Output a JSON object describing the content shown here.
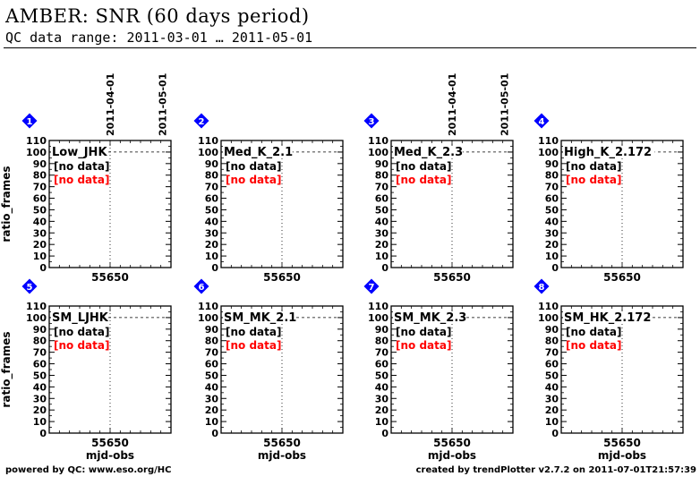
{
  "header": {
    "title": "AMBER: SNR (60 days period)",
    "subtitle": "QC data range: 2011-03-01 … 2011-05-01"
  },
  "footer": {
    "left": "powered by QC: www.eso.org/HC",
    "right": "created by trendPlotter v2.7.2 on 2011-07-01T21:57:39"
  },
  "colors": {
    "no_data_red": "#ff0000",
    "marker_blue": "#0000ff"
  },
  "chart_data": [
    {
      "type": "scatter",
      "panel_number": "1",
      "title": "Low_JHK",
      "status_lines": [
        "[no data]",
        "[no data]"
      ],
      "ylabel": "ratio_frames",
      "xlabel": "",
      "ylim": [
        0,
        110
      ],
      "yticks": [
        0,
        10,
        20,
        30,
        40,
        50,
        60,
        70,
        80,
        90,
        100,
        110
      ],
      "xticks": [
        "55650"
      ],
      "date_markers": [
        "2011-04-01",
        "2011-05-01"
      ],
      "reference_line_y": 100,
      "series": []
    },
    {
      "type": "scatter",
      "panel_number": "2",
      "title": "Med_K_2.1",
      "status_lines": [
        "[no data]",
        "[no data]"
      ],
      "ylabel": "",
      "xlabel": "",
      "ylim": [
        0,
        110
      ],
      "yticks": [
        0,
        10,
        20,
        30,
        40,
        50,
        60,
        70,
        80,
        90,
        100,
        110
      ],
      "xticks": [
        "55650"
      ],
      "date_markers": [],
      "reference_line_y": 100,
      "series": []
    },
    {
      "type": "scatter",
      "panel_number": "3",
      "title": "Med_K_2.3",
      "status_lines": [
        "[no data]",
        "[no data]"
      ],
      "ylabel": "",
      "xlabel": "",
      "ylim": [
        0,
        110
      ],
      "yticks": [
        0,
        10,
        20,
        30,
        40,
        50,
        60,
        70,
        80,
        90,
        100,
        110
      ],
      "xticks": [
        "55650"
      ],
      "date_markers": [
        "2011-04-01",
        "2011-05-01"
      ],
      "reference_line_y": 100,
      "series": []
    },
    {
      "type": "scatter",
      "panel_number": "4",
      "title": "High_K_2.172",
      "status_lines": [
        "[no data]",
        "[no data]"
      ],
      "ylabel": "",
      "xlabel": "",
      "ylim": [
        0,
        110
      ],
      "yticks": [
        0,
        10,
        20,
        30,
        40,
        50,
        60,
        70,
        80,
        90,
        100,
        110
      ],
      "xticks": [
        "55650"
      ],
      "date_markers": [],
      "reference_line_y": 100,
      "series": []
    },
    {
      "type": "scatter",
      "panel_number": "5",
      "title": "SM_LJHK",
      "status_lines": [
        "[no data]",
        "[no data]"
      ],
      "ylabel": "ratio_frames",
      "xlabel": "mjd-obs",
      "ylim": [
        0,
        110
      ],
      "yticks": [
        0,
        10,
        20,
        30,
        40,
        50,
        60,
        70,
        80,
        90,
        100,
        110
      ],
      "xticks": [
        "55650"
      ],
      "date_markers": [],
      "reference_line_y": 100,
      "series": []
    },
    {
      "type": "scatter",
      "panel_number": "6",
      "title": "SM_MK_2.1",
      "status_lines": [
        "[no data]",
        "[no data]"
      ],
      "ylabel": "",
      "xlabel": "mjd-obs",
      "ylim": [
        0,
        110
      ],
      "yticks": [
        0,
        10,
        20,
        30,
        40,
        50,
        60,
        70,
        80,
        90,
        100,
        110
      ],
      "xticks": [
        "55650"
      ],
      "date_markers": [],
      "reference_line_y": 100,
      "series": []
    },
    {
      "type": "scatter",
      "panel_number": "7",
      "title": "SM_MK_2.3",
      "status_lines": [
        "[no data]",
        "[no data]"
      ],
      "ylabel": "",
      "xlabel": "mjd-obs",
      "ylim": [
        0,
        110
      ],
      "yticks": [
        0,
        10,
        20,
        30,
        40,
        50,
        60,
        70,
        80,
        90,
        100,
        110
      ],
      "xticks": [
        "55650"
      ],
      "date_markers": [],
      "reference_line_y": 100,
      "series": []
    },
    {
      "type": "scatter",
      "panel_number": "8",
      "title": "SM_HK_2.172",
      "status_lines": [
        "[no data]",
        "[no data]"
      ],
      "ylabel": "",
      "xlabel": "mjd-obs",
      "ylim": [
        0,
        110
      ],
      "yticks": [
        0,
        10,
        20,
        30,
        40,
        50,
        60,
        70,
        80,
        90,
        100,
        110
      ],
      "xticks": [
        "55650"
      ],
      "date_markers": [],
      "reference_line_y": 100,
      "series": []
    }
  ]
}
